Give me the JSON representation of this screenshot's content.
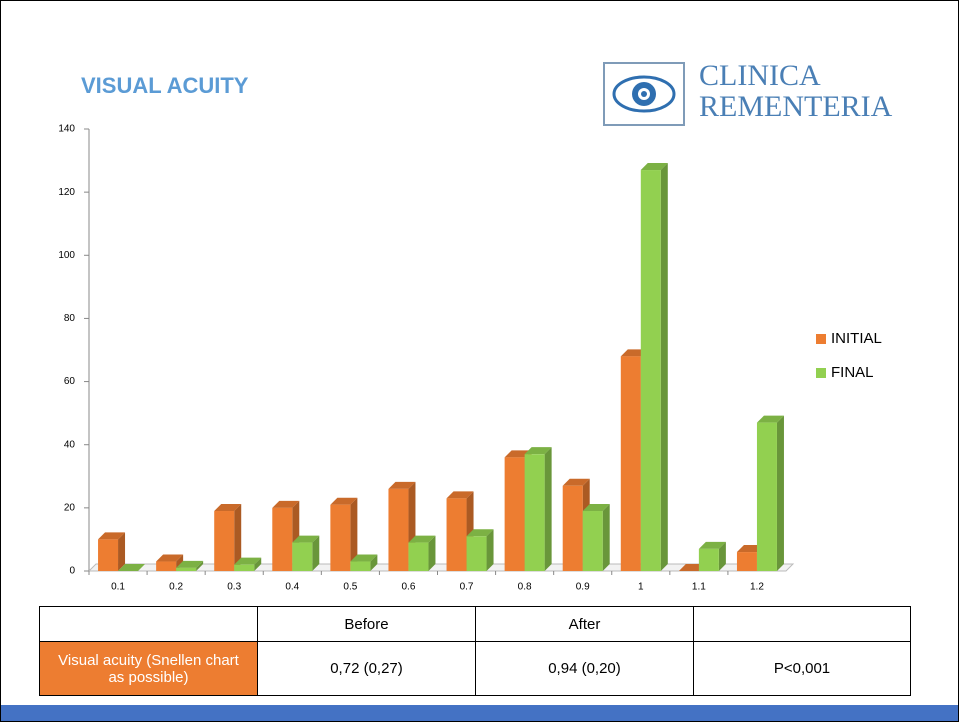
{
  "chart_data": {
    "type": "bar",
    "title": "VISUAL ACUITY",
    "categories": [
      "0.1",
      "0.2",
      "0.3",
      "0.4",
      "0.5",
      "0.6",
      "0.7",
      "0.8",
      "0.9",
      "1",
      "1.1",
      "1.2"
    ],
    "series": [
      {
        "name": "INITIAL",
        "color": "#ed7d31",
        "values": [
          10,
          3,
          19,
          20,
          21,
          26,
          23,
          36,
          27,
          68,
          0,
          6
        ]
      },
      {
        "name": "FINAL",
        "color": "#92d050",
        "values": [
          0,
          1,
          2,
          9,
          3,
          9,
          11,
          37,
          19,
          127,
          7,
          47
        ]
      }
    ],
    "ylim": [
      0,
      140
    ],
    "yticks": [
      0,
      20,
      40,
      60,
      80,
      100,
      120,
      140
    ],
    "legend": "right"
  },
  "logo": {
    "line1": "CLINICA",
    "line2": "REMENTERIA"
  },
  "table": {
    "header": [
      "Before",
      "After"
    ],
    "rows": [
      [
        "Visual acuity (Snellen chart as possible)",
        "0,72 (0,27)",
        "0,94 (0,20)",
        "P<0,001"
      ]
    ]
  }
}
